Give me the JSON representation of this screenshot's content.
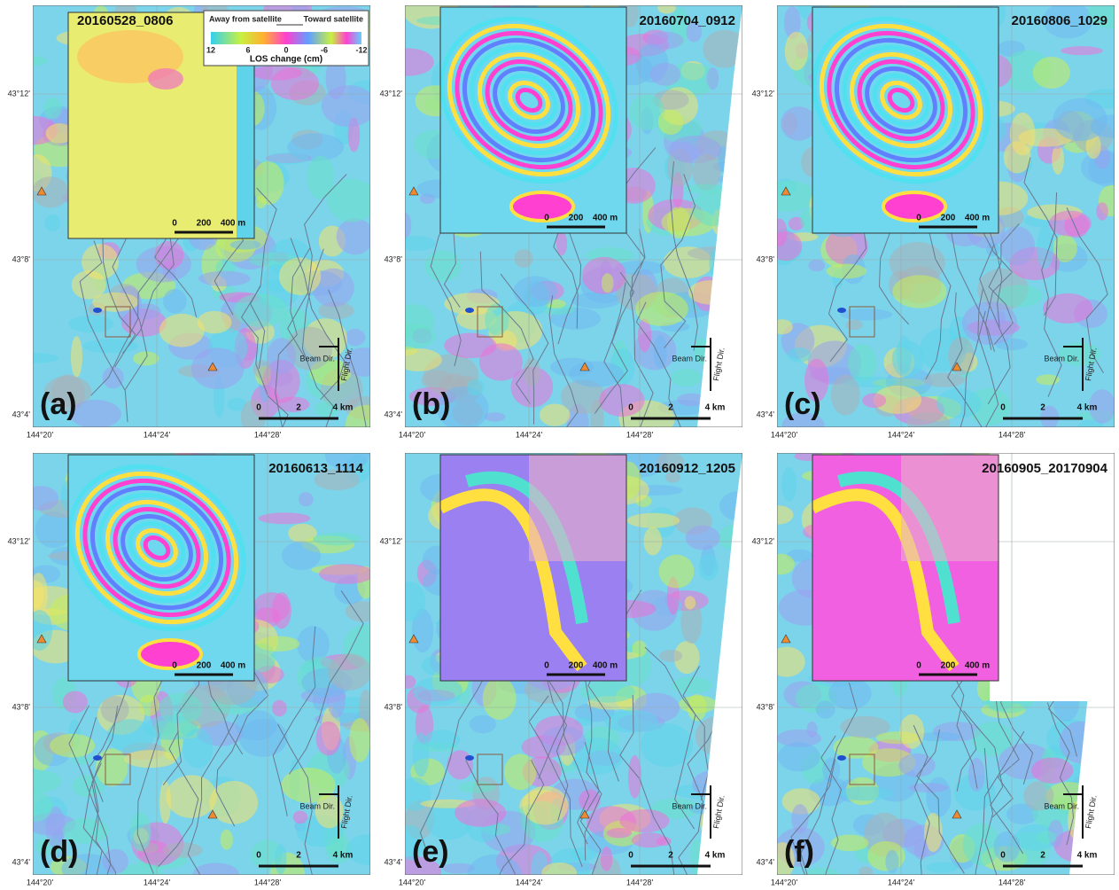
{
  "panels": [
    {
      "label": "(a)",
      "date": "20160528_0806",
      "inset_scale": [
        "0",
        "200",
        "400 m"
      ],
      "map_scale": [
        "0",
        "2",
        "4 km"
      ],
      "lat_labels": [
        "43°12'",
        "43°8'",
        "43°4'"
      ],
      "lon_labels": [
        "144°20'",
        "144°24'",
        "144°28'"
      ],
      "beam": "Beam Dir.",
      "flight": "Flight Dir."
    },
    {
      "label": "(b)",
      "date": "20160704_0912",
      "inset_scale": [
        "0",
        "200",
        "400 m"
      ],
      "map_scale": [
        "0",
        "2",
        "4 km"
      ],
      "lat_labels": [
        "43°12'",
        "43°8'",
        "43°4'"
      ],
      "lon_labels": [
        "144°20'",
        "144°24'",
        "144°28'"
      ],
      "beam": "Beam Dir.",
      "flight": "Flight Dir."
    },
    {
      "label": "(c)",
      "date": "20160806_1029",
      "inset_scale": [
        "0",
        "200",
        "400 m"
      ],
      "map_scale": [
        "0",
        "2",
        "4 km"
      ],
      "lat_labels": [
        "43°12'",
        "43°8'",
        "43°4'"
      ],
      "lon_labels": [
        "144°20'",
        "144°24'",
        "144°28'"
      ],
      "beam": "Beam Dir.",
      "flight": "Flight Dir."
    },
    {
      "label": "(d)",
      "date": "20160613_1114",
      "inset_scale": [
        "0",
        "200",
        "400 m"
      ],
      "map_scale": [
        "0",
        "2",
        "4 km"
      ],
      "lat_labels": [
        "43°12'",
        "43°8'",
        "43°4'"
      ],
      "lon_labels": [
        "144°20'",
        "144°24'",
        "144°28'"
      ],
      "beam": "Beam Dir.",
      "flight": "Flight Dir."
    },
    {
      "label": "(e)",
      "date": "20160912_1205",
      "inset_scale": [
        "0",
        "200",
        "400 m"
      ],
      "map_scale": [
        "0",
        "2",
        "4 km"
      ],
      "lat_labels": [
        "43°12'",
        "43°8'",
        "43°4'"
      ],
      "lon_labels": [
        "144°20'",
        "144°24'",
        "144°28'"
      ],
      "beam": "Beam Dir.",
      "flight": "Flight Dir."
    },
    {
      "label": "(f)",
      "date": "20160905_20170904",
      "inset_scale": [
        "0",
        "200",
        "400 m"
      ],
      "map_scale": [
        "0",
        "2",
        "4 km"
      ],
      "lat_labels": [
        "43°12'",
        "43°8'",
        "43°4'"
      ],
      "lon_labels": [
        "144°20'",
        "144°24'",
        "144°28'"
      ],
      "beam": "Beam Dir.",
      "flight": "Flight Dir."
    }
  ],
  "legend": {
    "away": "Away from satellite",
    "toward": "Toward satellite",
    "ticks": [
      "12",
      "6",
      "0",
      "-6",
      "-12"
    ],
    "title": "LOS change (cm)"
  }
}
